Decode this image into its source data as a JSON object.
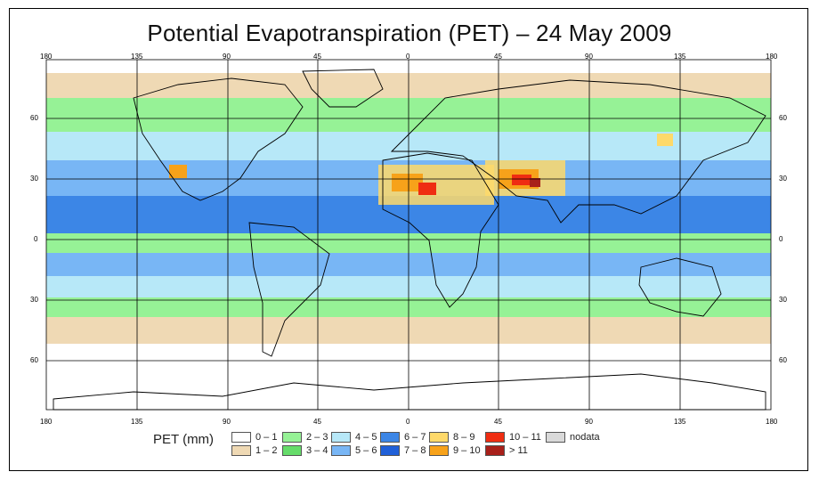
{
  "title": "Potential Evapotranspiration (PET) – 24 May 2009",
  "axes": {
    "lon_labels": [
      "180",
      "135",
      "90",
      "45",
      "0",
      "45",
      "90",
      "135",
      "180"
    ],
    "lat_labels": [
      "60",
      "30",
      "0",
      "30",
      "60"
    ]
  },
  "legend": {
    "unit_label": "PET (mm)",
    "classes": [
      {
        "label": "0 – 1",
        "color": "#ffffff"
      },
      {
        "label": "1 – 2",
        "color": "#efd9b4"
      },
      {
        "label": "2 – 3",
        "color": "#96f296"
      },
      {
        "label": "3 – 4",
        "color": "#66dc6a"
      },
      {
        "label": "4 – 5",
        "color": "#b7e8f8"
      },
      {
        "label": "5 – 6",
        "color": "#78b6f5"
      },
      {
        "label": "6 – 7",
        "color": "#3c86e6"
      },
      {
        "label": "7 – 8",
        "color": "#2060d8"
      },
      {
        "label": "8 – 9",
        "color": "#fed96a"
      },
      {
        "label": "9 – 10",
        "color": "#f7a21a"
      },
      {
        "label": "10 – 11",
        "color": "#ef2d12"
      },
      {
        "label": "> 11",
        "color": "#a8201a"
      },
      {
        "label": "nodata",
        "color": "#d9d9d9"
      }
    ]
  }
}
